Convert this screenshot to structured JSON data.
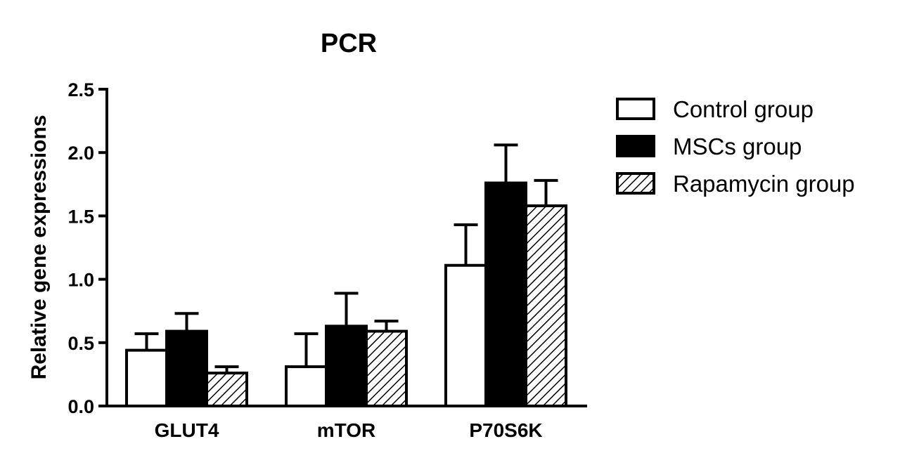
{
  "chart_data": {
    "type": "bar",
    "title": "PCR",
    "xlabel": "",
    "ylabel": "Relative gene expressions",
    "ylim": [
      0,
      2.5
    ],
    "yticks": [
      "0.0",
      "0.5",
      "1.0",
      "1.5",
      "2.0",
      "2.5"
    ],
    "categories": [
      "GLUT4",
      "mTOR",
      "P70S6K"
    ],
    "series": [
      {
        "name": "Control group",
        "fill": "white",
        "values": [
          0.44,
          0.31,
          1.11
        ],
        "errors": [
          0.13,
          0.26,
          0.32
        ]
      },
      {
        "name": "MSCs group",
        "fill": "black",
        "values": [
          0.59,
          0.63,
          1.76
        ],
        "errors": [
          0.14,
          0.26,
          0.3
        ]
      },
      {
        "name": "Rapamycin group",
        "fill": "hatched",
        "values": [
          0.26,
          0.59,
          1.58
        ],
        "errors": [
          0.05,
          0.08,
          0.2
        ]
      }
    ],
    "legend_position": "right",
    "grid": false,
    "error_bars": "upper"
  },
  "colors": {
    "line": "#000000",
    "background": "#ffffff"
  }
}
